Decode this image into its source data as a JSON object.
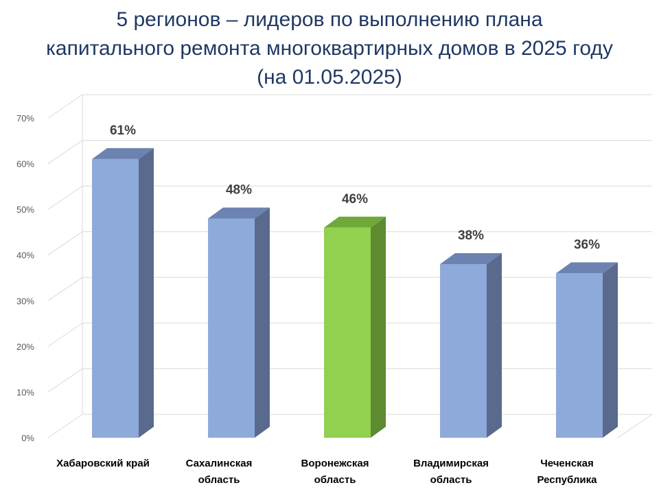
{
  "chart_data": {
    "type": "bar",
    "title_lines": [
      "5 регионов – лидеров по выполнению плана",
      "капитального ремонта многоквартирных домов в 2025 году",
      "(на 01.05.2025)"
    ],
    "categories": [
      [
        "Хабаровский край"
      ],
      [
        "Сахалинская",
        "область"
      ],
      [
        "Воронежская",
        "область"
      ],
      [
        "Владимирская",
        "область"
      ],
      [
        "Чеченская",
        "Республика"
      ]
    ],
    "values": [
      61,
      48,
      46,
      38,
      36
    ],
    "data_labels": [
      "61%",
      "48%",
      "46%",
      "38%",
      "36%"
    ],
    "y_ticks": [
      "0%",
      "10%",
      "20%",
      "30%",
      "40%",
      "50%",
      "60%",
      "70%"
    ],
    "ylim": [
      0,
      70
    ],
    "grid": true,
    "legend": "none",
    "colors": {
      "bar": "#8eaadb",
      "bar_side": "#5a6a8c",
      "bar_top": "#6c82b0",
      "highlight": "#92d050",
      "highlight_side": "#5e8a30",
      "highlight_top": "#70a83a",
      "grid": "#d9d9d9",
      "title": "#1f3864"
    },
    "highlight_index": 2
  }
}
